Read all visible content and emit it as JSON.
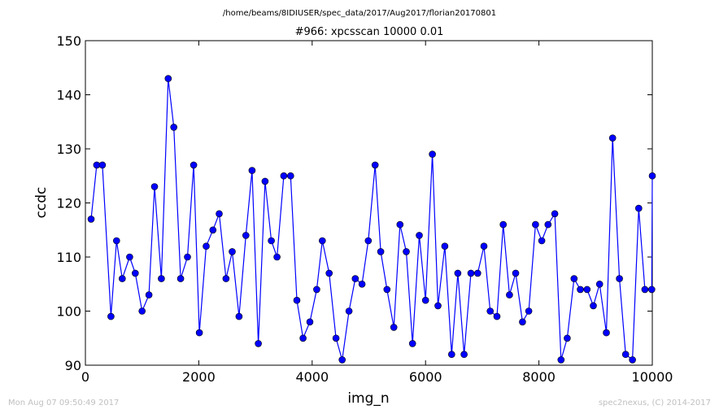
{
  "suptitle": "/home/beams/8IDIUSER/spec_data/2017/Aug2017/florian20170801",
  "footer_left": "Mon Aug 07 09:50:49 2017",
  "footer_right": "spec2nexus, (C) 2014-2017",
  "colors": {
    "series": "#0000ff",
    "axes": "#000000",
    "footer": "#c0c0c0"
  },
  "chart_data": {
    "type": "line",
    "title": "#966: xpcsscan 10000 0.01",
    "xlabel": "img_n",
    "ylabel": "ccdc",
    "xlim": [
      0,
      10000
    ],
    "ylim": [
      90,
      150
    ],
    "xticks": [
      0,
      2000,
      4000,
      6000,
      8000,
      10000
    ],
    "yticks": [
      90,
      100,
      110,
      120,
      130,
      140,
      150
    ],
    "grid": false,
    "marker": "circle",
    "series": [
      {
        "x": [
          100,
          200,
          300,
          450,
          550,
          650,
          780,
          880,
          1000,
          1120,
          1220,
          1340,
          1460,
          1560,
          1680,
          1800,
          1910,
          2010,
          2130,
          2250,
          2360,
          2480,
          2590,
          2710,
          2830,
          2940,
          3050,
          3170,
          3280,
          3380,
          3500,
          3620,
          3730,
          3840,
          3960,
          4080,
          4180,
          4300,
          4420,
          4530,
          4650,
          4760,
          4880,
          4990,
          5110,
          5210,
          5320,
          5440,
          5550,
          5660,
          5770,
          5890,
          6000,
          6120,
          6220,
          6340,
          6460,
          6570,
          6680,
          6800,
          6920,
          7030,
          7140,
          7260,
          7370,
          7480,
          7590,
          7710,
          7820,
          7940,
          8050,
          8160,
          8280,
          8390,
          8500,
          8620,
          8730,
          8850,
          8960,
          9070,
          9190,
          9300,
          9420,
          9530,
          9650,
          9760,
          9870,
          9990,
          10000
        ],
        "values": [
          117,
          127,
          127,
          99,
          113,
          106,
          110,
          107,
          100,
          103,
          123,
          106,
          143,
          134,
          106,
          110,
          127,
          96,
          112,
          115,
          118,
          106,
          111,
          99,
          114,
          126,
          94,
          124,
          113,
          110,
          125,
          125,
          102,
          95,
          98,
          104,
          113,
          107,
          95,
          91,
          100,
          106,
          105,
          113,
          127,
          111,
          104,
          97,
          116,
          111,
          94,
          114,
          102,
          129,
          101,
          112,
          92,
          107,
          92,
          107,
          107,
          112,
          100,
          99,
          116,
          103,
          107,
          98,
          100,
          116,
          113,
          116,
          118,
          91,
          95,
          106,
          104,
          104,
          101,
          105,
          96,
          132,
          106,
          92,
          91,
          119,
          104,
          104,
          125
        ]
      }
    ]
  }
}
